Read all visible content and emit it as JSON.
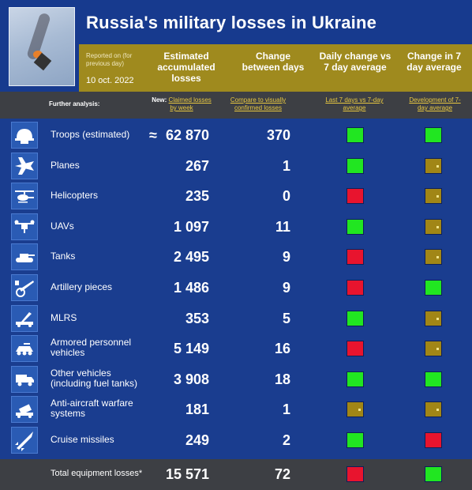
{
  "header": {
    "title": "Russia's military losses in Ukraine",
    "reported_on": "Reported on (for previous day)",
    "date": "10 oct. 2022",
    "col_accumulated": "Estimated accumulated losses",
    "col_change": "Change between days",
    "col_daily": "Daily change vs 7 day average",
    "col_7day": "Change in 7 day average"
  },
  "analysis": {
    "label": "Further analysis:",
    "link1_prefix": "New:",
    "link1": "Claimed losses by week",
    "link2": "Compare to visually confirmed losses",
    "link3": "Last 7 days vs 7-day average",
    "link4": "Development of 7-day average"
  },
  "rows": [
    {
      "label": "Troops (estimated)",
      "approx": "≈",
      "value": "62 870",
      "change": "370",
      "daily": "green",
      "avg": "green",
      "icon": "helmet-icon"
    },
    {
      "label": "Planes",
      "value": "267",
      "change": "1",
      "daily": "green",
      "avg": "olive",
      "icon": "plane-icon"
    },
    {
      "label": "Helicopters",
      "value": "235",
      "change": "0",
      "daily": "red",
      "avg": "olive",
      "icon": "helicopter-icon"
    },
    {
      "label": "UAVs",
      "value": "1 097",
      "change": "11",
      "daily": "green",
      "avg": "olive",
      "icon": "drone-icon"
    },
    {
      "label": "Tanks",
      "value": "2 495",
      "change": "9",
      "daily": "red",
      "avg": "olive",
      "icon": "tank-icon"
    },
    {
      "label": "Artillery pieces",
      "value": "1 486",
      "change": "9",
      "daily": "red",
      "avg": "green",
      "icon": "artillery-icon"
    },
    {
      "label": "MLRS",
      "value": "353",
      "change": "5",
      "daily": "green",
      "avg": "olive",
      "icon": "mlrs-icon"
    },
    {
      "label": "Armored personnel vehicles",
      "value": "5 149",
      "change": "16",
      "daily": "red",
      "avg": "olive",
      "icon": "apc-icon"
    },
    {
      "label": "Other vehicles (including fuel tanks)",
      "value": "3 908",
      "change": "18",
      "daily": "green",
      "avg": "green",
      "icon": "truck-icon"
    },
    {
      "label": "Anti-aircraft warfare systems",
      "value": "181",
      "change": "1",
      "daily": "olive",
      "avg": "olive",
      "icon": "anti-aircraft-icon"
    },
    {
      "label": "Cruise missiles",
      "value": "249",
      "change": "2",
      "daily": "green",
      "avg": "red",
      "icon": "missile-icon"
    }
  ],
  "footer": {
    "label": "Total equipment losses*",
    "value": "15 571",
    "change": "72",
    "daily": "red",
    "avg": "green"
  },
  "colors": {
    "background": "#1a3d8f",
    "gold_band": "#9f8a1e",
    "green": "#21e621",
    "red": "#e8142e",
    "olive": "#a18616"
  }
}
